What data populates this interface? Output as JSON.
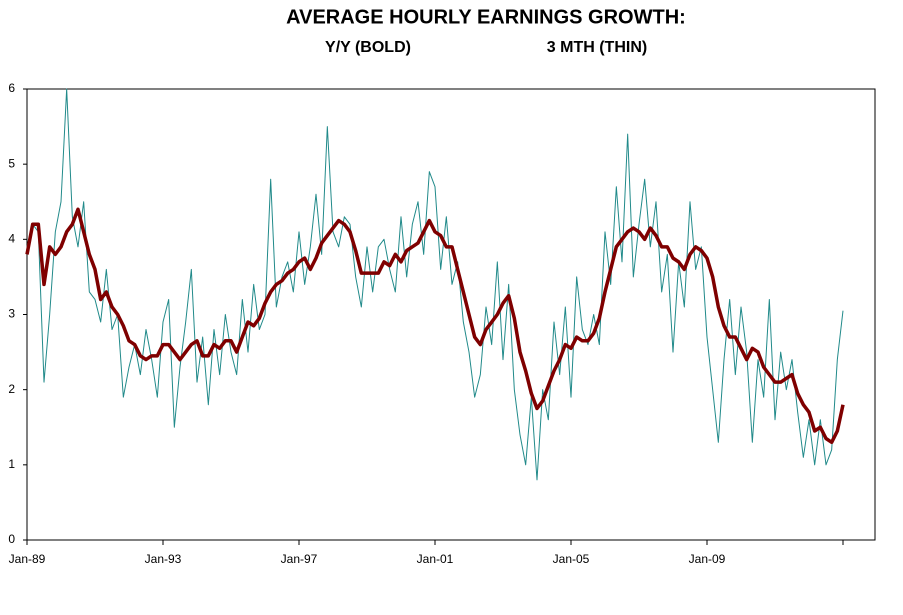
{
  "chart_data": {
    "type": "line",
    "title": "AVERAGE HOURLY EARNINGS GROWTH:",
    "categories": [
      "Jan-89",
      null,
      null,
      null,
      null,
      null,
      null,
      null,
      null,
      null,
      null,
      null,
      null,
      null,
      null,
      null,
      null,
      null,
      null,
      null,
      null,
      null,
      null,
      null,
      "Jan-93",
      null,
      null,
      null,
      null,
      null,
      null,
      null,
      null,
      null,
      null,
      null,
      null,
      null,
      null,
      null,
      null,
      null,
      null,
      null,
      null,
      null,
      null,
      null,
      "Jan-97",
      null,
      null,
      null,
      null,
      null,
      null,
      null,
      null,
      null,
      null,
      null,
      null,
      null,
      null,
      null,
      null,
      null,
      null,
      null,
      null,
      null,
      null,
      null,
      "Jan-01",
      null,
      null,
      null,
      null,
      null,
      null,
      null,
      null,
      null,
      null,
      null,
      null,
      null,
      null,
      null,
      null,
      null,
      null,
      null,
      null,
      null,
      null,
      null,
      "Jan-05",
      null,
      null,
      null,
      null,
      null,
      null,
      null,
      null,
      null,
      null,
      null,
      null,
      null,
      null,
      null,
      null,
      null,
      null,
      null,
      null,
      null,
      null,
      null,
      "Jan-09",
      null,
      null,
      null,
      null,
      null,
      null,
      null,
      null,
      null,
      null,
      null,
      null,
      null,
      null,
      null,
      null,
      null,
      null,
      null,
      null,
      null,
      null,
      null,
      null
    ],
    "series": [
      {
        "name": "3 MTH (THIN)",
        "color": "#218a8a",
        "width": 1,
        "values": [
          3.9,
          4.2,
          4.1,
          2.1,
          3.0,
          4.1,
          4.5,
          6.0,
          4.3,
          3.9,
          4.5,
          3.3,
          3.2,
          2.9,
          3.6,
          2.8,
          3.0,
          1.9,
          2.3,
          2.6,
          2.2,
          2.8,
          2.4,
          1.9,
          2.9,
          3.2,
          1.5,
          2.3,
          2.9,
          3.6,
          2.1,
          2.7,
          1.8,
          2.8,
          2.2,
          3.0,
          2.5,
          2.2,
          3.2,
          2.5,
          3.4,
          2.8,
          3.0,
          4.8,
          3.1,
          3.5,
          3.7,
          3.3,
          4.1,
          3.4,
          3.9,
          4.6,
          3.8,
          5.5,
          4.1,
          3.9,
          4.3,
          4.2,
          3.5,
          3.1,
          3.9,
          3.3,
          3.9,
          4.0,
          3.6,
          3.3,
          4.3,
          3.5,
          4.2,
          4.5,
          3.8,
          4.9,
          4.7,
          3.6,
          4.3,
          3.4,
          3.7,
          2.9,
          2.5,
          1.9,
          2.2,
          3.1,
          2.6,
          3.7,
          2.4,
          3.4,
          2.0,
          1.4,
          1.0,
          1.9,
          0.8,
          2.0,
          1.6,
          2.9,
          2.2,
          3.1,
          1.9,
          3.5,
          2.8,
          2.6,
          3.0,
          2.6,
          4.1,
          3.4,
          4.7,
          3.7,
          5.4,
          3.5,
          4.2,
          4.8,
          3.9,
          4.5,
          3.3,
          3.8,
          2.5,
          3.7,
          3.1,
          4.5,
          3.6,
          3.9,
          2.7,
          2.0,
          1.3,
          2.4,
          3.2,
          2.2,
          3.1,
          2.5,
          1.3,
          2.4,
          1.9,
          3.2,
          1.6,
          2.5,
          2.0,
          2.4,
          1.7,
          1.1,
          1.6,
          1.0,
          1.6,
          1.0,
          1.2,
          2.4,
          3.05
        ]
      },
      {
        "name": "Y/Y (BOLD)",
        "color": "#7f0000",
        "width": 3.5,
        "values": [
          3.8,
          4.2,
          4.2,
          3.4,
          3.9,
          3.8,
          3.9,
          4.1,
          4.2,
          4.4,
          4.1,
          3.8,
          3.6,
          3.2,
          3.3,
          3.1,
          3.0,
          2.85,
          2.65,
          2.6,
          2.45,
          2.4,
          2.45,
          2.45,
          2.6,
          2.6,
          2.5,
          2.4,
          2.5,
          2.6,
          2.65,
          2.45,
          2.45,
          2.6,
          2.55,
          2.65,
          2.65,
          2.5,
          2.7,
          2.9,
          2.85,
          2.95,
          3.15,
          3.3,
          3.4,
          3.45,
          3.55,
          3.6,
          3.7,
          3.75,
          3.6,
          3.75,
          3.95,
          4.05,
          4.15,
          4.25,
          4.2,
          4.1,
          3.85,
          3.55,
          3.55,
          3.55,
          3.55,
          3.7,
          3.65,
          3.8,
          3.7,
          3.85,
          3.9,
          3.95,
          4.1,
          4.25,
          4.1,
          4.05,
          3.9,
          3.9,
          3.6,
          3.3,
          3.0,
          2.7,
          2.6,
          2.8,
          2.9,
          3.0,
          3.15,
          3.25,
          2.95,
          2.5,
          2.25,
          1.95,
          1.75,
          1.85,
          2.05,
          2.25,
          2.4,
          2.6,
          2.55,
          2.7,
          2.65,
          2.65,
          2.75,
          2.95,
          3.3,
          3.6,
          3.9,
          4.0,
          4.1,
          4.15,
          4.1,
          4.0,
          4.15,
          4.05,
          3.9,
          3.9,
          3.75,
          3.7,
          3.6,
          3.8,
          3.9,
          3.85,
          3.75,
          3.5,
          3.1,
          2.85,
          2.7,
          2.7,
          2.55,
          2.4,
          2.55,
          2.5,
          2.3,
          2.2,
          2.1,
          2.1,
          2.15,
          2.2,
          1.95,
          1.8,
          1.7,
          1.45,
          1.5,
          1.35,
          1.3,
          1.45,
          1.8
        ]
      }
    ],
    "ylim": [
      0,
      6
    ],
    "yticks": [
      0,
      1,
      2,
      3,
      4,
      5,
      6
    ],
    "grid": false
  }
}
